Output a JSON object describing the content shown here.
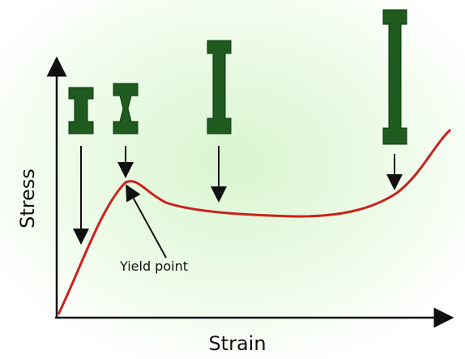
{
  "labels": {
    "y_axis": "Stress",
    "x_axis": "Strain",
    "annotation": "Yield point"
  }
}
